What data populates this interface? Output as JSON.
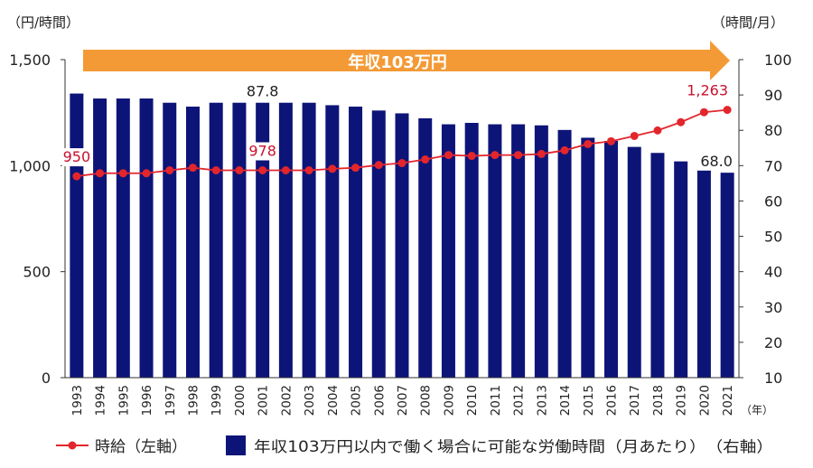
{
  "chart_data": {
    "type": "bar+line",
    "left_axis_unit": "（円/時間）",
    "right_axis_unit": "（時間/月）",
    "x_unit": "（年）",
    "banner": "年収103万円",
    "colors": {
      "bar": "#0d1478",
      "line": "#e3262c",
      "point": "#e3262c",
      "label_red": "#c8102e",
      "banner": "#f39a36"
    },
    "categories": [
      "1993",
      "1994",
      "1995",
      "1996",
      "1997",
      "1998",
      "1999",
      "2000",
      "2001",
      "2002",
      "2003",
      "2004",
      "2005",
      "2006",
      "2007",
      "2008",
      "2009",
      "2010",
      "2011",
      "2012",
      "2013",
      "2014",
      "2015",
      "2016",
      "2017",
      "2018",
      "2019",
      "2020",
      "2021"
    ],
    "left_ylim": [
      0,
      1500
    ],
    "left_ticks": [
      "0",
      "500",
      "1,000",
      "1,500"
    ],
    "right_ylim": [
      10,
      100
    ],
    "right_ticks": [
      "10",
      "20",
      "30",
      "40",
      "50",
      "60",
      "70",
      "80",
      "90",
      "100"
    ],
    "series": [
      {
        "name": "時給（左軸）",
        "axis": "left",
        "kind": "line",
        "values": [
          950,
          964,
          964,
          964,
          978,
          990,
          978,
          978,
          978,
          978,
          978,
          985,
          990,
          1003,
          1012,
          1029,
          1050,
          1046,
          1050,
          1050,
          1055,
          1072,
          1102,
          1115,
          1140,
          1166,
          1205,
          1252,
          1263
        ]
      },
      {
        "name": "年収103万円以内で働く場合に可能な労働時間（月あたり）（右軸）",
        "axis": "right",
        "kind": "bar",
        "values": [
          90.4,
          89.0,
          89.0,
          89.0,
          87.8,
          86.7,
          87.8,
          87.8,
          87.8,
          87.8,
          87.8,
          87.1,
          86.7,
          85.6,
          84.8,
          83.4,
          81.7,
          82.1,
          81.7,
          81.7,
          81.4,
          80.1,
          77.9,
          77.0,
          75.3,
          73.6,
          71.2,
          68.6,
          68.0
        ]
      }
    ],
    "annotations": [
      {
        "text": "950",
        "year": "1993",
        "series": "line"
      },
      {
        "text": "978",
        "year": "2001",
        "series": "line"
      },
      {
        "text": "1,263",
        "year": "2021",
        "series": "line"
      },
      {
        "text": "87.8",
        "year": "2001",
        "series": "bar"
      },
      {
        "text": "68.0",
        "year": "2021",
        "series": "bar"
      }
    ],
    "legend": {
      "line_label": "時給（左軸）",
      "bar_label": "年収103万円以内で働く場合に可能な労働時間（月あたり）　（右軸）",
      "placement": "bottom"
    }
  }
}
